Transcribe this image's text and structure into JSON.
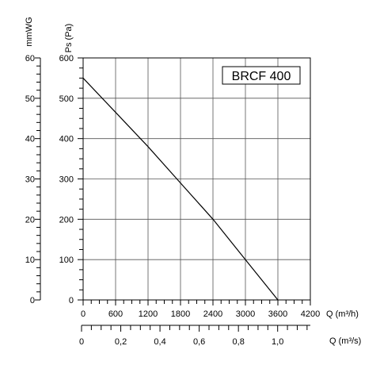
{
  "chart_data": {
    "type": "line",
    "title": "BRCF 400",
    "grid": true,
    "series": [
      {
        "x": [
          0,
          600,
          1200,
          1800,
          2400,
          3000,
          3600
        ],
        "y": [
          550,
          465,
          380,
          290,
          200,
          100,
          0
        ]
      }
    ],
    "axes": {
      "x_primary": {
        "label": "Q (m³/h)",
        "range": [
          0,
          4200
        ],
        "ticks": [
          0,
          600,
          1200,
          1800,
          2400,
          3000,
          3600,
          4200
        ],
        "tick_labels": [
          "0",
          "600",
          "1200",
          "1800",
          "2400",
          "3000",
          "3600",
          "4200"
        ]
      },
      "x_secondary": {
        "label": "Q (m³/s)",
        "range": [
          0,
          1.1667
        ],
        "ticks": [
          0,
          0.2,
          0.4,
          0.6,
          0.8,
          1.0
        ],
        "tick_labels": [
          "0",
          "0,2",
          "0,4",
          "0,6",
          "0,8",
          "1,0"
        ]
      },
      "y_primary": {
        "label": "Ps (Pa)",
        "range": [
          0,
          600
        ],
        "ticks": [
          0,
          100,
          200,
          300,
          400,
          500,
          600
        ],
        "tick_labels": [
          "0",
          "100",
          "200",
          "300",
          "400",
          "500",
          "600"
        ]
      },
      "y_secondary": {
        "label": "mmWG",
        "range": [
          0,
          60
        ],
        "ticks": [
          0,
          10,
          20,
          30,
          40,
          50,
          60
        ],
        "tick_labels": [
          "0",
          "10",
          "20",
          "30",
          "40",
          "50",
          "60"
        ]
      }
    }
  }
}
